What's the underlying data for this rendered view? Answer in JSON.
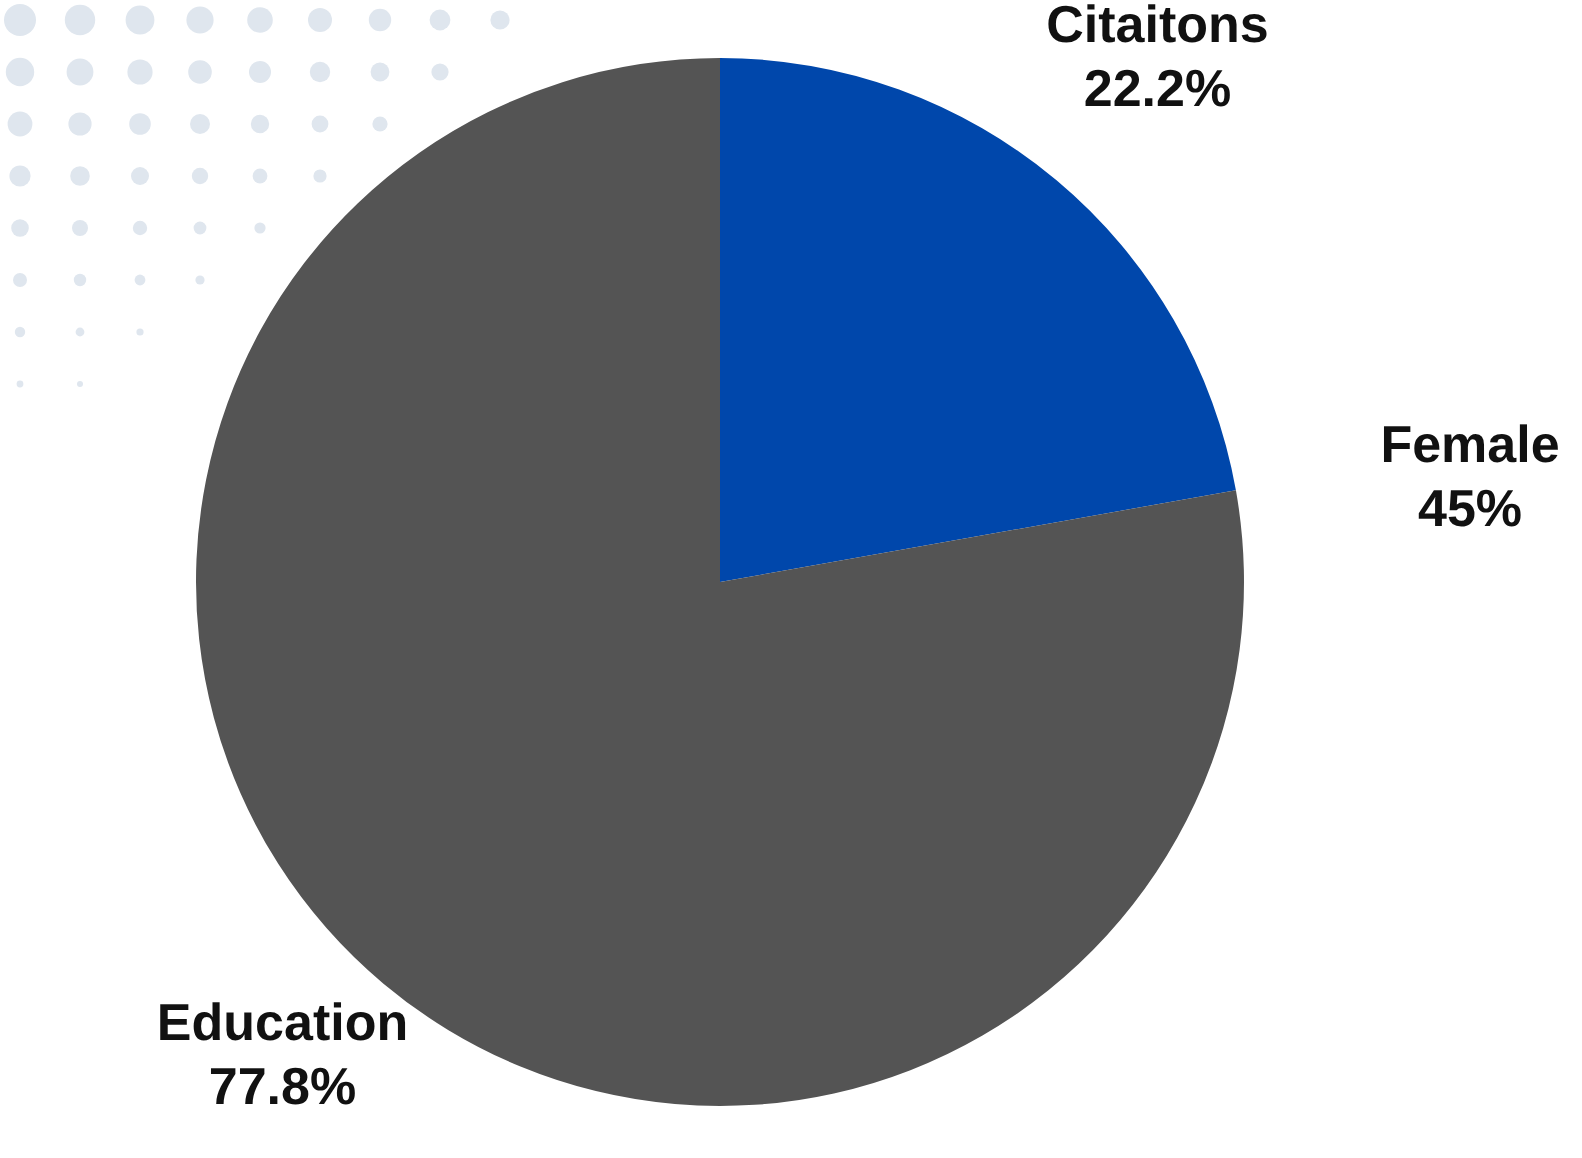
{
  "chart_data": {
    "type": "pie",
    "categories": [
      "Citaitons",
      "Education"
    ],
    "values": [
      22.2,
      77.8
    ],
    "colors": [
      "#0047ab",
      "#545454"
    ],
    "value_labels": [
      "22.2%",
      "77.8%"
    ],
    "annotations": [
      "Female 45%"
    ]
  }
}
